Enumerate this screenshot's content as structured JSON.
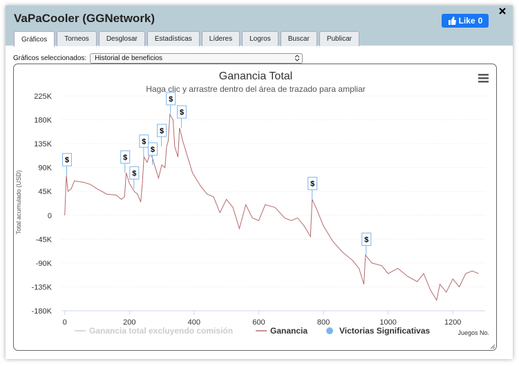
{
  "window": {
    "title": "VaPaCooler (GGNetwork)",
    "like_button": {
      "label": "Like",
      "count": 0
    }
  },
  "tabs": [
    "Gráficos",
    "Torneos",
    "Desglosar",
    "Estadísticas",
    "Líderes",
    "Logros",
    "Buscar",
    "Publicar"
  ],
  "selector": {
    "label": "Gráficos seleccionados:",
    "value": "Historial de beneficios"
  },
  "chart_data": {
    "type": "line",
    "title": "Ganancia Total",
    "subtitle": "Haga clic y arrastre dentro del área de trazado para ampliar",
    "y_label": "Total acumulado (USD)",
    "x_label": "Juegos No.",
    "xlim": [
      -10,
      1300
    ],
    "xticks": [
      0,
      200,
      400,
      600,
      800,
      1000,
      1200
    ],
    "ylim": [
      -180000,
      225000
    ],
    "yticks": [
      {
        "value": -180000,
        "label": "-180K"
      },
      {
        "value": -135000,
        "label": "-135K"
      },
      {
        "value": -90000,
        "label": "-90K"
      },
      {
        "value": -45000,
        "label": "-45K"
      },
      0,
      {
        "value": 45000,
        "label": "45K"
      },
      {
        "value": 90000,
        "label": "90K"
      },
      {
        "value": 135000,
        "label": "135K"
      },
      {
        "value": 180000,
        "label": "180K"
      },
      {
        "value": 225000,
        "label": "225K"
      }
    ],
    "grid": true,
    "series": [
      {
        "name": "Ganancia total excluyendo comisión",
        "color": "#cccccc",
        "visible": false,
        "x": [],
        "values": []
      },
      {
        "name": "Ganancia",
        "color": "#b5696b",
        "x": [
          0,
          5,
          10,
          20,
          30,
          60,
          80,
          100,
          130,
          160,
          175,
          185,
          190,
          200,
          215,
          225,
          235,
          240,
          245,
          255,
          265,
          280,
          290,
          300,
          310,
          315,
          320,
          325,
          335,
          340,
          350,
          355,
          365,
          380,
          395,
          420,
          440,
          460,
          480,
          500,
          520,
          540,
          560,
          580,
          600,
          620,
          650,
          680,
          700,
          720,
          740,
          760,
          765,
          780,
          800,
          830,
          860,
          890,
          910,
          925,
          930,
          950,
          980,
          1000,
          1030,
          1060,
          1090,
          1110,
          1130,
          1150,
          1160,
          1180,
          1200,
          1220,
          1240,
          1260,
          1280
        ],
        "values": [
          0,
          75000,
          45000,
          50000,
          65000,
          62000,
          58000,
          50000,
          40000,
          38000,
          30000,
          35000,
          80000,
          60000,
          45000,
          40000,
          25000,
          60000,
          110000,
          100000,
          120000,
          90000,
          70000,
          95000,
          90000,
          130000,
          140000,
          190000,
          180000,
          130000,
          110000,
          165000,
          140000,
          110000,
          80000,
          55000,
          40000,
          35000,
          5000,
          30000,
          15000,
          -25000,
          20000,
          -5000,
          -10000,
          20000,
          15000,
          -5000,
          -10000,
          -5000,
          -20000,
          -40000,
          30000,
          10000,
          -20000,
          -50000,
          -70000,
          -85000,
          -100000,
          -130000,
          -75000,
          -90000,
          -95000,
          -110000,
          -100000,
          -115000,
          -125000,
          -110000,
          -140000,
          -160000,
          -130000,
          -145000,
          -120000,
          -135000,
          -110000,
          -105000,
          -110000
        ]
      },
      {
        "name": "Victorias Significativas",
        "color": "#7cb5ec",
        "flag_label": "$",
        "x": [
          6,
          186,
          214,
          244,
          271,
          299,
          327,
          361,
          765,
          932
        ],
        "values": [
          75000,
          80000,
          50000,
          110000,
          95000,
          130000,
          190000,
          165000,
          30000,
          -75000
        ]
      }
    ]
  }
}
